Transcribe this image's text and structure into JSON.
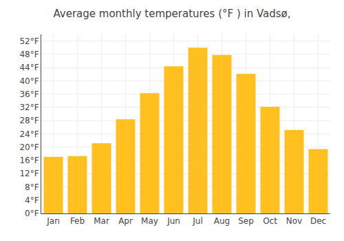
{
  "chart_data": {
    "type": "bar",
    "title": "Average monthly temperatures (°F ) in Vadsø,",
    "categories": [
      "Jan",
      "Feb",
      "Mar",
      "Apr",
      "May",
      "Jun",
      "Jul",
      "Aug",
      "Sep",
      "Oct",
      "Nov",
      "Dec"
    ],
    "values": [
      17.1,
      17.3,
      21.2,
      28.4,
      36.3,
      44.4,
      50.0,
      47.8,
      42.1,
      32.2,
      25.2,
      19.4
    ],
    "color": "#FFC020",
    "ylim": [
      0,
      54
    ],
    "yticks": [
      {
        "value": 0,
        "label": "0°F"
      },
      {
        "value": 4,
        "label": "4°F"
      },
      {
        "value": 8,
        "label": "8°F"
      },
      {
        "value": 12,
        "label": "12°F"
      },
      {
        "value": 16,
        "label": "16°F"
      },
      {
        "value": 20,
        "label": "20°F"
      },
      {
        "value": 24,
        "label": "24°F"
      },
      {
        "value": 28,
        "label": "28°F"
      },
      {
        "value": 32,
        "label": "32°F"
      },
      {
        "value": 36,
        "label": "36°F"
      },
      {
        "value": 40,
        "label": "40°F"
      },
      {
        "value": 44,
        "label": "44°F"
      },
      {
        "value": 48,
        "label": "48°F"
      },
      {
        "value": 52,
        "label": "52°F"
      }
    ],
    "grid": true
  }
}
